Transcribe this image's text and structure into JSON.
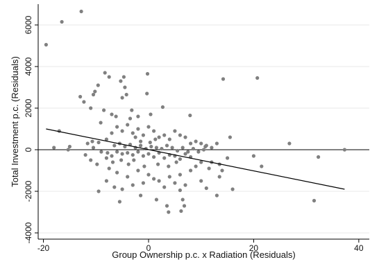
{
  "chart_data": {
    "type": "scatter",
    "title": "",
    "xlabel": "Group Ownership p.c. x Radiation (Residuals)",
    "ylabel": "Total Investment p.c. (Residuals)",
    "xlim": [
      -21,
      42
    ],
    "ylim": [
      -4300,
      7000
    ],
    "xticks": [
      -20,
      0,
      20,
      40
    ],
    "yticks": [
      -4000,
      -2000,
      0,
      2000,
      4000,
      6000
    ],
    "xtick_labels": [
      "-20",
      "0",
      "20",
      "40"
    ],
    "ytick_labels": [
      "-4000",
      "-2000",
      "0",
      "2000",
      "4000",
      "6000"
    ],
    "grid": "horizontal",
    "reference_line_y": 0,
    "fit_line": {
      "x": [
        -19.5,
        37.3
      ],
      "y": [
        1000,
        -1900
      ]
    },
    "marker_color": "#808080",
    "line_color": "#000000",
    "points": [
      [
        -19.5,
        5050
      ],
      [
        -16.5,
        6150
      ],
      [
        -12.8,
        6650
      ],
      [
        -17.0,
        900
      ],
      [
        -18.0,
        100
      ],
      [
        -15.0,
        150
      ],
      [
        -15.3,
        0
      ],
      [
        -13.0,
        2550
      ],
      [
        -12.3,
        2300
      ],
      [
        -10.5,
        2650
      ],
      [
        -11.0,
        2000
      ],
      [
        -10.2,
        2800
      ],
      [
        -9.6,
        3100
      ],
      [
        -8.3,
        3700
      ],
      [
        -7.5,
        3500
      ],
      [
        -5.3,
        3300
      ],
      [
        -4.5,
        3000
      ],
      [
        -4.7,
        3500
      ],
      [
        -5.0,
        2500
      ],
      [
        -4.2,
        2650
      ],
      [
        -0.2,
        3650
      ],
      [
        -9.1,
        1300
      ],
      [
        -8.5,
        1900
      ],
      [
        -7.0,
        1700
      ],
      [
        -6.2,
        1600
      ],
      [
        -3.5,
        1500
      ],
      [
        -2.0,
        1600
      ],
      [
        0.4,
        1700
      ],
      [
        2.7,
        2050
      ],
      [
        7.9,
        1650
      ],
      [
        14.2,
        3400
      ],
      [
        20.7,
        3450
      ],
      [
        -11.6,
        300
      ],
      [
        -10.7,
        400
      ],
      [
        -9.5,
        350
      ],
      [
        -8.0,
        500
      ],
      [
        -7.0,
        800
      ],
      [
        -6.0,
        1100
      ],
      [
        -5.0,
        900
      ],
      [
        -4.0,
        1200
      ],
      [
        -3.0,
        800
      ],
      [
        -2.0,
        1000
      ],
      [
        -1.0,
        700
      ],
      [
        0.0,
        1100
      ],
      [
        1.0,
        900
      ],
      [
        2.0,
        600
      ],
      [
        3.0,
        700
      ],
      [
        4.0,
        500
      ],
      [
        5.0,
        900
      ],
      [
        6.0,
        700
      ],
      [
        7.0,
        600
      ],
      [
        8.0,
        300
      ],
      [
        9.0,
        400
      ],
      [
        10.0,
        300
      ],
      [
        11.0,
        200
      ],
      [
        12.0,
        100
      ],
      [
        13.0,
        300
      ],
      [
        15.5,
        600
      ],
      [
        -6.5,
        200
      ],
      [
        -5.5,
        300
      ],
      [
        -4.5,
        150
      ],
      [
        -3.5,
        250
      ],
      [
        -2.5,
        100
      ],
      [
        -1.5,
        200
      ],
      [
        -0.5,
        50
      ],
      [
        0.5,
        150
      ],
      [
        1.5,
        100
      ],
      [
        2.5,
        50
      ],
      [
        3.5,
        200
      ],
      [
        4.5,
        100
      ],
      [
        5.5,
        -50
      ],
      [
        6.5,
        100
      ],
      [
        7.5,
        -100
      ],
      [
        8.5,
        50
      ],
      [
        9.5,
        -100
      ],
      [
        10.5,
        0
      ],
      [
        -6.0,
        -100
      ],
      [
        -5.0,
        -200
      ],
      [
        -4.0,
        -150
      ],
      [
        -3.0,
        -250
      ],
      [
        -2.0,
        -100
      ],
      [
        -1.0,
        -300
      ],
      [
        0.0,
        -200
      ],
      [
        1.0,
        -350
      ],
      [
        2.0,
        -150
      ],
      [
        3.0,
        -400
      ],
      [
        4.0,
        -250
      ],
      [
        5.0,
        -300
      ],
      [
        6.0,
        -450
      ],
      [
        7.0,
        -200
      ],
      [
        8.0,
        -350
      ],
      [
        -9.0,
        -100
      ],
      [
        -8.0,
        -400
      ],
      [
        -7.0,
        -300
      ],
      [
        -9.8,
        -700
      ],
      [
        -7.5,
        -900
      ],
      [
        -6.0,
        -1100
      ],
      [
        -4.0,
        -1300
      ],
      [
        -2.0,
        -1000
      ],
      [
        0.0,
        -1200
      ],
      [
        2.0,
        -1500
      ],
      [
        4.0,
        -1300
      ],
      [
        6.0,
        -1200
      ],
      [
        -8.0,
        -1500
      ],
      [
        -6.5,
        -1800
      ],
      [
        -5.0,
        -1900
      ],
      [
        -3.0,
        -1700
      ],
      [
        -1.0,
        -1600
      ],
      [
        1.0,
        -1400
      ],
      [
        3.0,
        -1800
      ],
      [
        5.0,
        -1600
      ],
      [
        7.0,
        -1700
      ],
      [
        -9.5,
        -2000
      ],
      [
        -5.5,
        -2500
      ],
      [
        -1.5,
        -2200
      ],
      [
        1.5,
        -2400
      ],
      [
        3.5,
        -2700
      ],
      [
        3.8,
        -3000
      ],
      [
        6.5,
        -2400
      ],
      [
        6.8,
        -2700
      ],
      [
        6.2,
        -2950
      ],
      [
        6.0,
        -1950
      ],
      [
        10.0,
        -1500
      ],
      [
        11.0,
        -1850
      ],
      [
        13.0,
        -2200
      ],
      [
        16.0,
        -1900
      ],
      [
        12.0,
        -600
      ],
      [
        13.5,
        -700
      ],
      [
        14.0,
        -1000
      ],
      [
        15.0,
        -400
      ],
      [
        13.5,
        -1300
      ],
      [
        20.0,
        -300
      ],
      [
        21.5,
        -800
      ],
      [
        26.8,
        300
      ],
      [
        31.5,
        -2450
      ],
      [
        32.3,
        -350
      ],
      [
        37.3,
        0
      ],
      [
        9.0,
        -800
      ],
      [
        10.0,
        -600
      ],
      [
        11.5,
        -900
      ],
      [
        8.0,
        -1000
      ],
      [
        -12.0,
        -250
      ],
      [
        -11.0,
        -500
      ],
      [
        -10.5,
        100
      ],
      [
        -2.5,
        600
      ],
      [
        -1.5,
        400
      ],
      [
        0.3,
        350
      ],
      [
        1.3,
        500
      ],
      [
        -3.8,
        -700
      ],
      [
        -2.8,
        -500
      ],
      [
        -0.8,
        -800
      ],
      [
        1.8,
        -700
      ],
      [
        3.8,
        -800
      ],
      [
        5.3,
        -600
      ],
      [
        -5.2,
        -500
      ],
      [
        -7.8,
        -150
      ],
      [
        -6.8,
        -600
      ],
      [
        10.8,
        150
      ],
      [
        -0.3,
        2700
      ],
      [
        -3.2,
        1900
      ]
    ]
  }
}
